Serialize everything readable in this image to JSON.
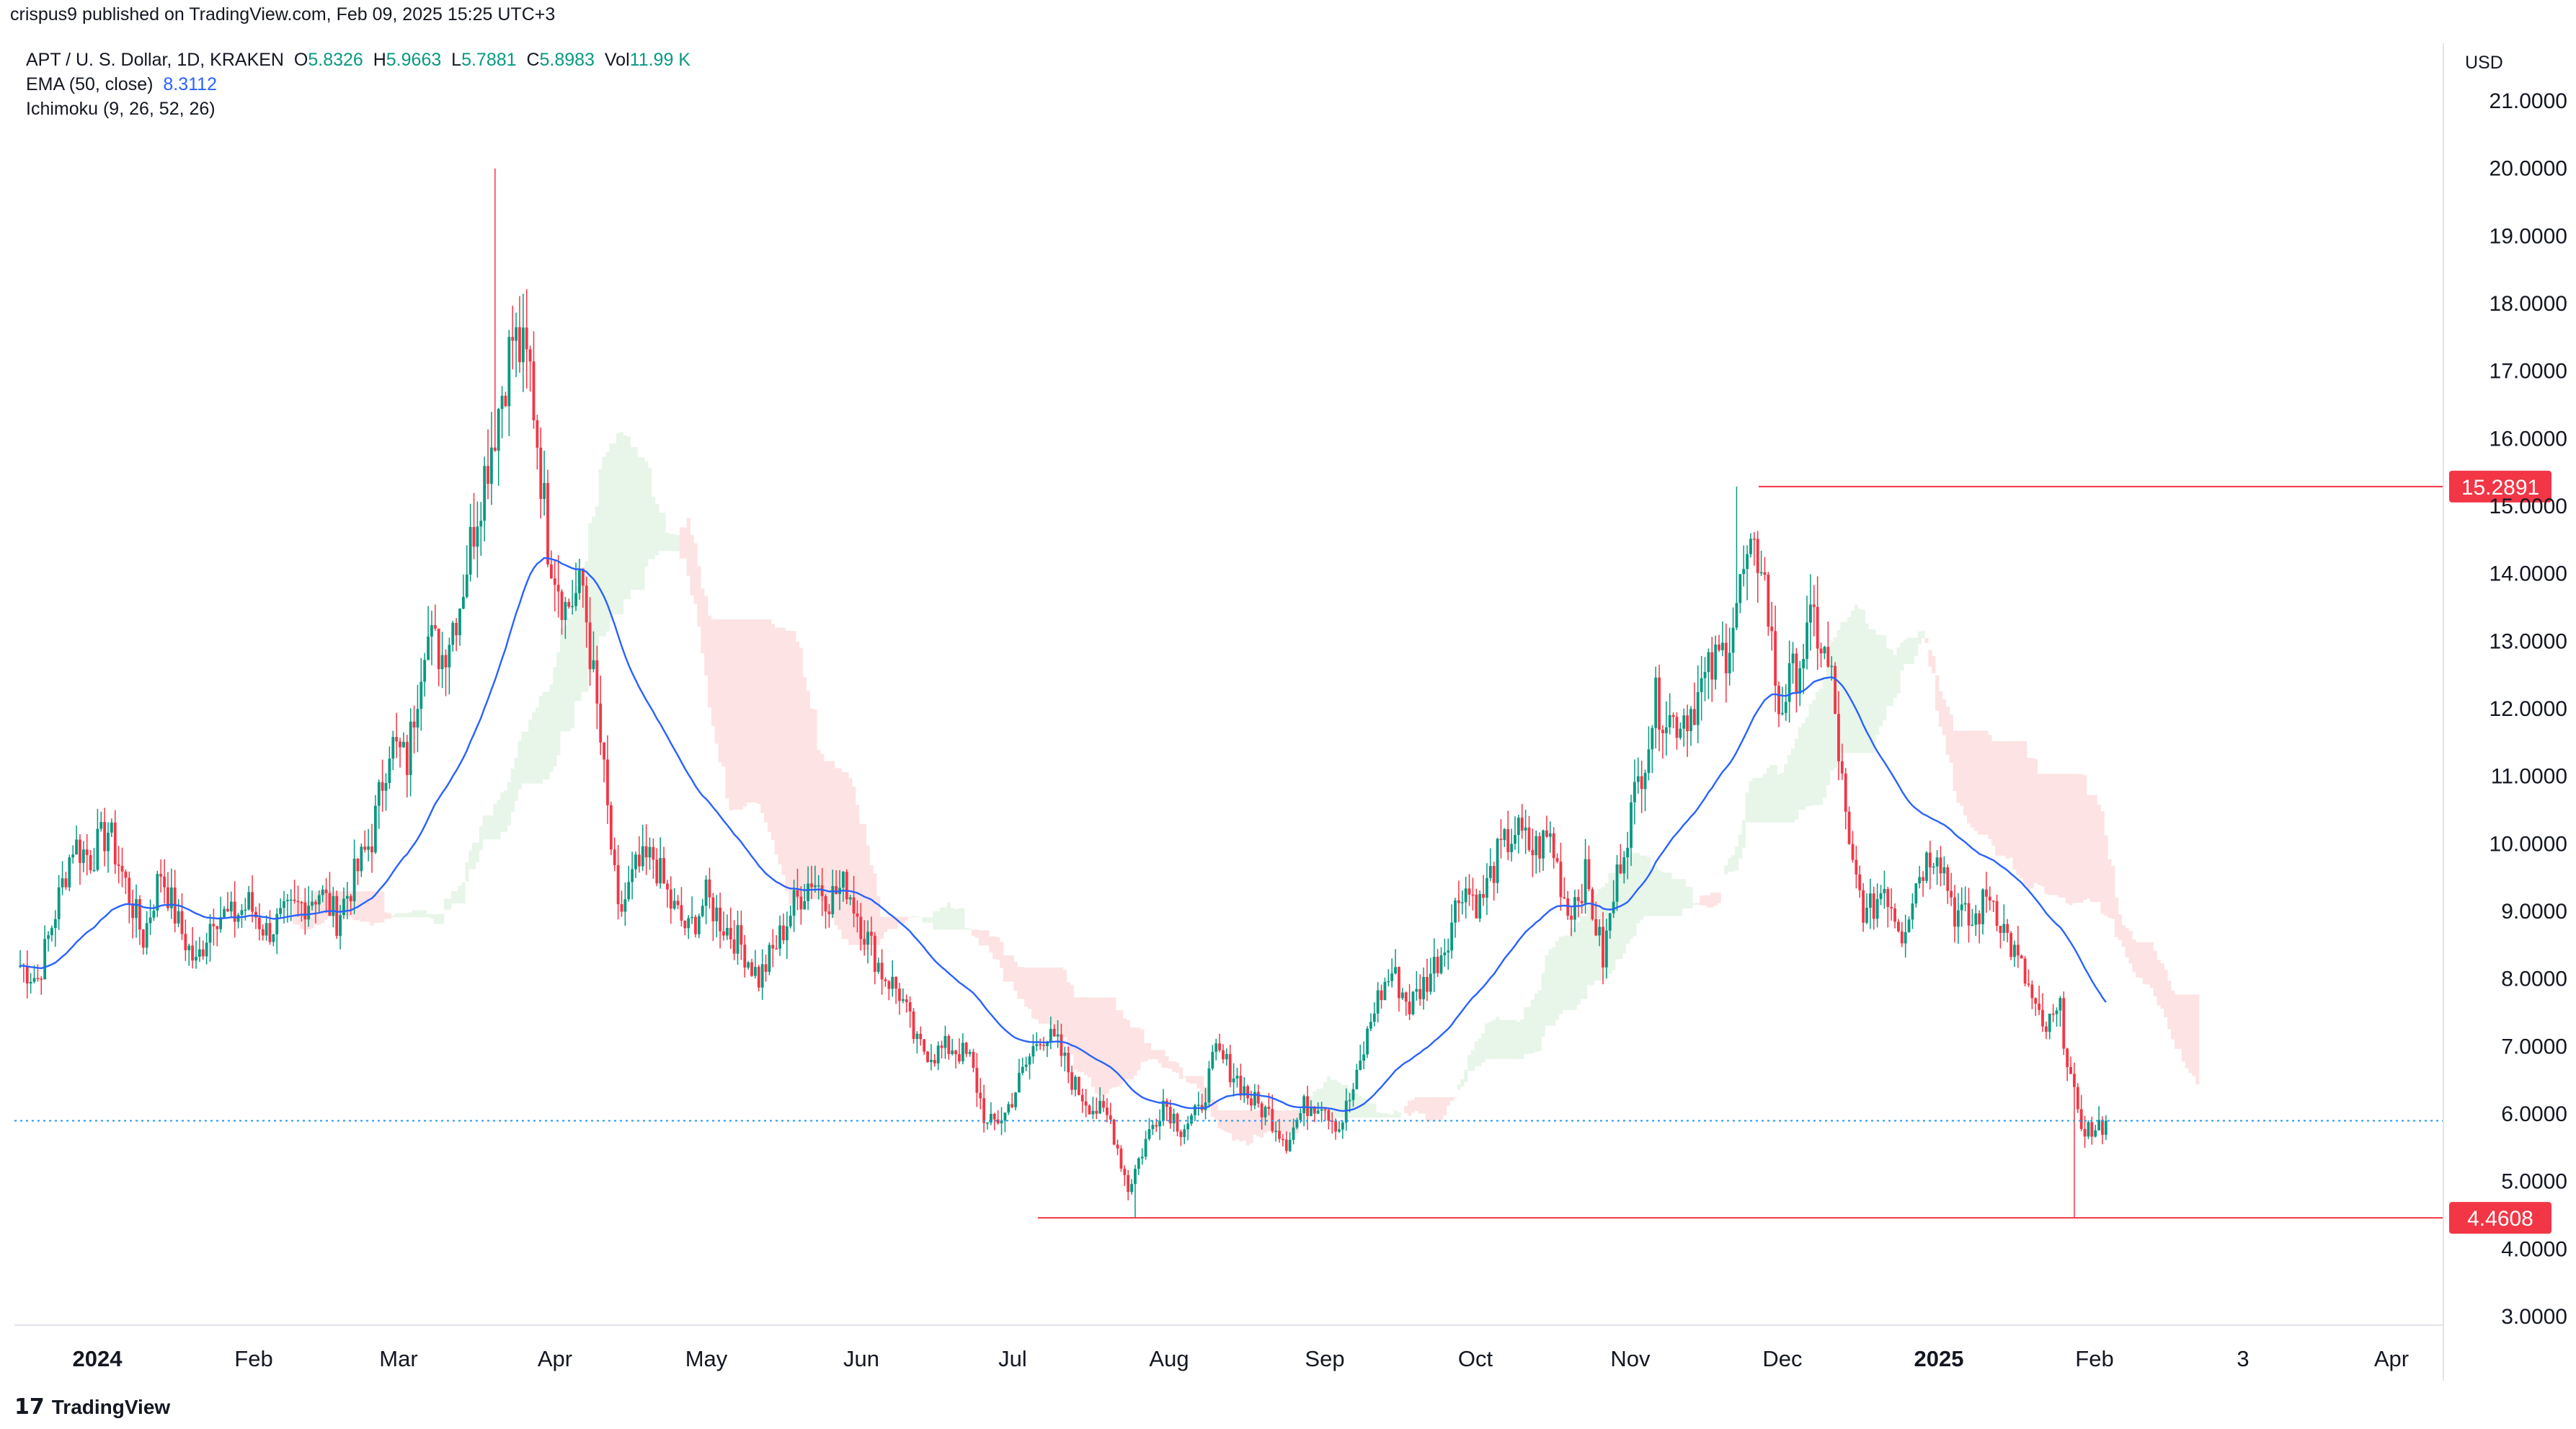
{
  "header": {
    "published_by": "crispus9 published on TradingView.com, Feb 09, 2025 15:25 UTC+3"
  },
  "legend": {
    "symbol": "APT / U. S. Dollar, 1D, KRAKEN",
    "o_label": "O",
    "o_value": "5.8326",
    "h_label": "H",
    "h_value": "5.9663",
    "l_label": "L",
    "l_value": "5.7881",
    "c_label": "C",
    "c_value": "5.8983",
    "vol_label": "Vol",
    "vol_value": "11.99 K",
    "ema_label": "EMA (50, close)",
    "ema_value": "8.3112",
    "ichimoku_label": "Ichimoku (9, 26, 52, 26)"
  },
  "footer": {
    "brand": "TradingView"
  },
  "colors": {
    "up": "#089981",
    "down": "#f23645",
    "ema": "#2962ff",
    "cloud_bull": "#e8f5e9",
    "cloud_bear": "#fde3e3",
    "level": "#f23645"
  },
  "chart_data": {
    "type": "candlestick",
    "currency": "USD",
    "y_ticks": [
      "3.0000",
      "4.0000",
      "5.0000",
      "6.0000",
      "7.0000",
      "8.0000",
      "9.0000",
      "10.0000",
      "11.0000",
      "12.0000",
      "13.0000",
      "14.0000",
      "15.0000",
      "16.0000",
      "17.0000",
      "18.0000",
      "19.0000",
      "20.0000",
      "21.0000"
    ],
    "ylim": [
      2.4,
      21.8
    ],
    "x_labels": [
      "2024",
      "Feb",
      "Mar",
      "Apr",
      "May",
      "Jun",
      "Jul",
      "Aug",
      "Sep",
      "Oct",
      "Nov",
      "Dec",
      "2025",
      "Feb",
      "3",
      "Apr"
    ],
    "x_label_bold": [
      "2024",
      "2025"
    ],
    "levels": [
      {
        "label": "15.2891",
        "value": 15.2891
      },
      {
        "label": "4.4608",
        "value": 4.4608
      }
    ],
    "last_price": 5.8983,
    "price_anchors": [
      [
        0,
        8.2
      ],
      [
        5,
        8.0
      ],
      [
        10,
        9.0
      ],
      [
        15,
        10.0
      ],
      [
        20,
        9.8
      ],
      [
        25,
        10.2
      ],
      [
        30,
        9.4
      ],
      [
        35,
        8.6
      ],
      [
        40,
        9.6
      ],
      [
        45,
        8.8
      ],
      [
        50,
        8.2
      ],
      [
        55,
        9.0
      ],
      [
        60,
        8.9
      ],
      [
        65,
        9.1
      ],
      [
        70,
        8.7
      ],
      [
        75,
        8.9
      ],
      [
        80,
        9.1
      ],
      [
        85,
        9.3
      ],
      [
        90,
        8.9
      ],
      [
        95,
        9.5
      ],
      [
        100,
        10.1
      ],
      [
        105,
        11.5
      ],
      [
        110,
        11.2
      ],
      [
        115,
        13.1
      ],
      [
        120,
        12.8
      ],
      [
        125,
        13.6
      ],
      [
        130,
        15.0
      ],
      [
        135,
        16.2
      ],
      [
        140,
        17.5
      ],
      [
        145,
        17.0
      ],
      [
        150,
        14.5
      ],
      [
        155,
        13.5
      ],
      [
        160,
        13.8
      ],
      [
        165,
        11.5
      ],
      [
        170,
        8.9
      ],
      [
        175,
        9.6
      ],
      [
        180,
        9.8
      ],
      [
        185,
        9.1
      ],
      [
        190,
        8.7
      ],
      [
        195,
        9.2
      ],
      [
        200,
        8.8
      ],
      [
        205,
        8.5
      ],
      [
        210,
        8.0
      ],
      [
        215,
        8.5
      ],
      [
        220,
        9.1
      ],
      [
        225,
        9.5
      ],
      [
        230,
        9.2
      ],
      [
        235,
        9.4
      ],
      [
        240,
        8.7
      ],
      [
        245,
        8.1
      ],
      [
        250,
        7.8
      ],
      [
        255,
        7.0
      ],
      [
        260,
        6.9
      ],
      [
        265,
        7.0
      ],
      [
        270,
        6.8
      ],
      [
        275,
        5.8
      ],
      [
        280,
        6.0
      ],
      [
        285,
        6.6
      ],
      [
        290,
        7.2
      ],
      [
        295,
        7.0
      ],
      [
        300,
        6.4
      ],
      [
        305,
        6.1
      ],
      [
        310,
        5.9
      ],
      [
        315,
        4.9
      ],
      [
        320,
        5.6
      ],
      [
        325,
        6.2
      ],
      [
        330,
        5.8
      ],
      [
        335,
        6.0
      ],
      [
        340,
        6.9
      ],
      [
        345,
        6.6
      ],
      [
        350,
        6.2
      ],
      [
        355,
        6.0
      ],
      [
        360,
        5.6
      ],
      [
        365,
        6.1
      ],
      [
        370,
        6.2
      ],
      [
        375,
        5.8
      ],
      [
        380,
        6.5
      ],
      [
        385,
        7.6
      ],
      [
        390,
        8.1
      ],
      [
        395,
        7.6
      ],
      [
        400,
        8.0
      ],
      [
        405,
        8.5
      ],
      [
        410,
        9.4
      ],
      [
        415,
        9.1
      ],
      [
        420,
        9.8
      ],
      [
        425,
        10.2
      ],
      [
        430,
        9.9
      ],
      [
        435,
        10.1
      ],
      [
        440,
        9.0
      ],
      [
        445,
        9.5
      ],
      [
        450,
        8.3
      ],
      [
        455,
        9.8
      ],
      [
        460,
        10.9
      ],
      [
        465,
        12.1
      ],
      [
        470,
        11.8
      ],
      [
        475,
        12.0
      ],
      [
        480,
        12.5
      ],
      [
        485,
        12.9
      ],
      [
        490,
        14.0
      ],
      [
        495,
        14.3
      ],
      [
        500,
        12.0
      ],
      [
        505,
        12.6
      ],
      [
        510,
        13.3
      ],
      [
        515,
        12.4
      ],
      [
        520,
        9.8
      ],
      [
        525,
        8.9
      ],
      [
        530,
        9.4
      ],
      [
        535,
        8.7
      ],
      [
        540,
        9.6
      ],
      [
        545,
        10.0
      ],
      [
        550,
        9.0
      ],
      [
        555,
        8.8
      ],
      [
        560,
        9.3
      ],
      [
        565,
        8.6
      ],
      [
        570,
        8.0
      ],
      [
        575,
        7.2
      ],
      [
        580,
        7.5
      ],
      [
        585,
        5.9
      ],
      [
        590,
        5.7
      ],
      [
        593,
        5.8983
      ]
    ],
    "wicks_extreme": [
      {
        "x": 135,
        "high": 20.0
      },
      {
        "x": 488,
        "high": 15.2891
      },
      {
        "x": 317,
        "low": 4.4608
      },
      {
        "x": 584,
        "low": 4.4608
      }
    ]
  }
}
